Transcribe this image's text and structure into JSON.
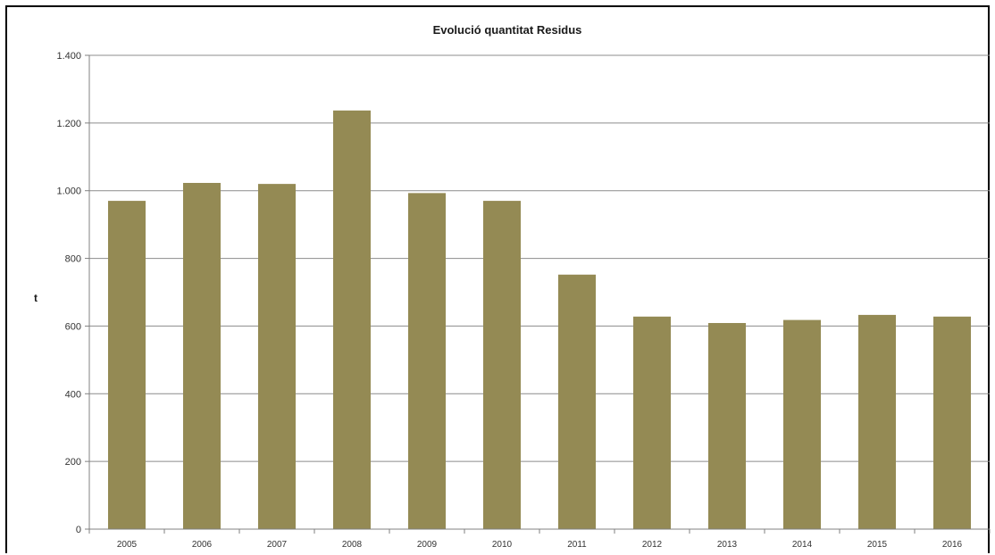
{
  "chart_data": {
    "type": "bar",
    "title": "Evolució quantitat Residus",
    "xlabel": "",
    "ylabel": "t",
    "categories": [
      "2005",
      "2006",
      "2007",
      "2008",
      "2009",
      "2010",
      "2011",
      "2012",
      "2013",
      "2014",
      "2015",
      "2016"
    ],
    "values": [
      970,
      1023,
      1020,
      1237,
      993,
      970,
      752,
      628,
      609,
      618,
      633,
      628
    ],
    "ylim": [
      0,
      1400
    ],
    "yticks": [
      0,
      200,
      400,
      600,
      800,
      1000,
      1200,
      1400
    ],
    "ytick_labels": [
      "0",
      "200",
      "400",
      "600",
      "800",
      "1.000",
      "1.200",
      "1.400"
    ],
    "grid": true,
    "legend": "none",
    "bar_color": "#948a54",
    "grid_color": "#8c8c8c"
  }
}
